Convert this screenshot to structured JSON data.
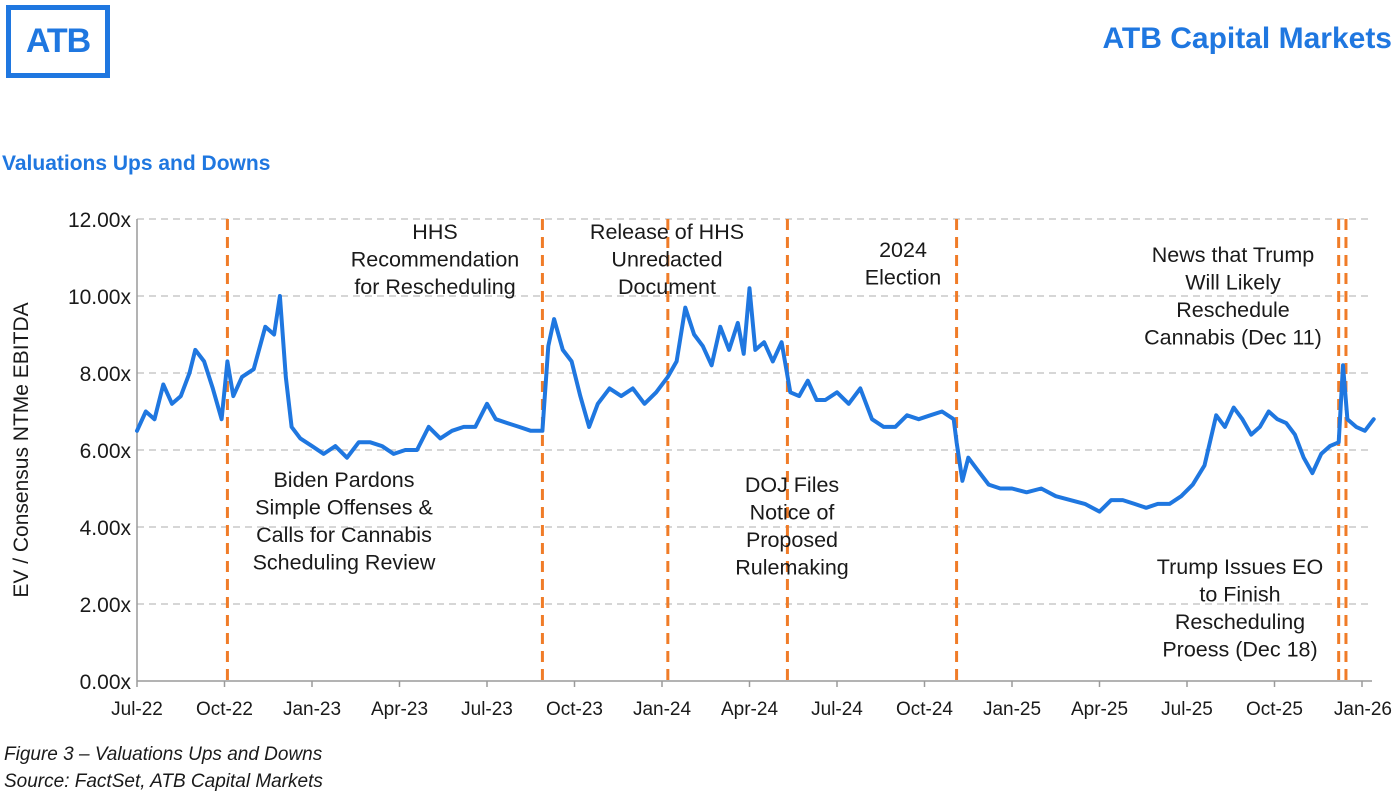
{
  "header": {
    "logo_text": "ATB",
    "brand_name": "ATB Capital Markets",
    "brand_color": "#1f77e0"
  },
  "chart_title": "Valuations Ups and Downs",
  "footer": {
    "figure_caption": "Figure 3 – Valuations Ups and Downs",
    "source": "Source: FactSet, ATB Capital Markets"
  },
  "chart_data": {
    "type": "line",
    "title": "Valuations Ups and Downs",
    "xlabel": "",
    "ylabel": "EV / Consensus NTMe EBITDA",
    "ylim": [
      0,
      12
    ],
    "y_ticks": [
      "0.00x",
      "2.00x",
      "4.00x",
      "6.00x",
      "8.00x",
      "10.00x",
      "12.00x"
    ],
    "x_ticks": [
      "Jul-22",
      "Oct-22",
      "Jan-23",
      "Apr-23",
      "Jul-23",
      "Oct-23",
      "Jan-24",
      "Apr-24",
      "Jul-24",
      "Oct-24",
      "Jan-25",
      "Apr-25",
      "Jul-25",
      "Oct-25",
      "Jan-26"
    ],
    "grid": true,
    "line_color": "#1f77e0",
    "event_line_color": "#f07c28",
    "series": [
      {
        "name": "EV / Consensus NTMe EBITDA",
        "x": [
          "Jul-22",
          "Aug-22",
          "Sep-22",
          "Oct-22",
          "Nov-22",
          "Dec-22",
          "Jan-23",
          "Feb-23",
          "Mar-23",
          "Apr-23",
          "May-23",
          "Jun-23",
          "Jul-23",
          "Aug-23",
          "Sep-23",
          "Oct-23",
          "Nov-23",
          "Dec-23",
          "Jan-24",
          "Feb-24",
          "Mar-24",
          "Apr-24",
          "May-24",
          "Jun-24",
          "Jul-24",
          "Aug-24",
          "Sep-24",
          "Oct-24",
          "Nov-24",
          "Dec-24",
          "Jan-25",
          "Feb-25",
          "Mar-25",
          "Apr-25",
          "May-25",
          "Jun-25",
          "Jul-25",
          "Aug-25",
          "Sep-25",
          "Oct-25",
          "Nov-25",
          "Dec-25",
          "Jan-26"
        ],
        "values": [
          6.6,
          7.5,
          8.5,
          7.0,
          8.2,
          9.2,
          6.3,
          5.9,
          6.1,
          6.0,
          6.5,
          6.6,
          6.9,
          6.6,
          8.9,
          7.8,
          6.8,
          7.4,
          7.8,
          9.1,
          8.7,
          9.2,
          8.5,
          7.6,
          7.3,
          7.4,
          6.9,
          6.9,
          5.9,
          5.0,
          4.9,
          4.7,
          4.5,
          4.6,
          4.7,
          4.6,
          5.2,
          6.9,
          6.5,
          6.9,
          6.0,
          6.6,
          6.8
        ]
      }
    ],
    "events": [
      {
        "date": "Oct-22",
        "label": "Biden Pardons Simple Offenses & Calls for Cannabis Scheduling Review"
      },
      {
        "date": "Aug-23",
        "label": "HHS Recommendation for Rescheduling"
      },
      {
        "date": "Jan-24",
        "label": "Release of HHS Unredacted Document"
      },
      {
        "date": "May-24",
        "label": "DOJ Files Notice of Proposed Rulemaking"
      },
      {
        "date": "Nov-24",
        "label": "2024 Election"
      },
      {
        "date": "Dec 11",
        "label": "News that Trump Will Likely Reschedule Cannabis (Dec 11)"
      },
      {
        "date": "Dec 18",
        "label": "Trump Issues EO to Finish Rescheduling Proess (Dec 18)"
      }
    ],
    "annotations": {
      "biden": [
        "Biden Pardons",
        "Simple Offenses &",
        "Calls for Cannabis",
        "Scheduling Review"
      ],
      "hhs": [
        "HHS",
        "Recommendation",
        "for Rescheduling"
      ],
      "release": [
        "Release of HHS",
        "Unredacted",
        "Document"
      ],
      "doj": [
        "DOJ Files",
        "Notice of",
        "Proposed",
        "Rulemaking"
      ],
      "election": [
        "2024",
        "Election"
      ],
      "news": [
        "News that Trump",
        "Will Likely",
        "Reschedule",
        "Cannabis (Dec 11)"
      ],
      "eo": [
        "Trump Issues EO",
        "to Finish",
        "Rescheduling",
        "Proess (Dec 18)"
      ]
    }
  }
}
